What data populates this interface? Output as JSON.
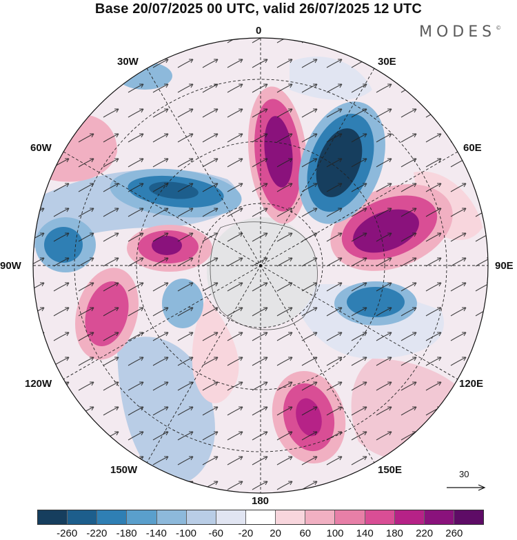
{
  "header": {
    "title": "Base 20/07/2025 00 UTC, valid 26/07/2025 12 UTC",
    "brand": "MODES",
    "brand_mark": "©"
  },
  "map": {
    "projection": "south-polar-stereographic",
    "longitude_labels": {
      "lon_0": "0",
      "lon_30e": "30E",
      "lon_60e": "60E",
      "lon_90e": "90E",
      "lon_120e": "120E",
      "lon_150e": "150E",
      "lon_180": "180",
      "lon_150w": "150W",
      "lon_120w": "120W",
      "lon_90w": "90W",
      "lon_60w": "60W",
      "lon_30w": "30W"
    },
    "vector_reference": {
      "value": "30"
    }
  },
  "colorbar": {
    "ticks": [
      "-260",
      "-220",
      "-180",
      "-140",
      "-100",
      "-60",
      "-20",
      "20",
      "60",
      "100",
      "140",
      "180",
      "220",
      "260"
    ],
    "colors": [
      "#163e5e",
      "#1d5e8c",
      "#2f7fb4",
      "#5a9fcc",
      "#8db9db",
      "#b9cde6",
      "#e1e5f2",
      "#ffffff",
      "#f8d6dd",
      "#f1b0c2",
      "#e77fa7",
      "#d94e95",
      "#b62287",
      "#8a127c",
      "#5e0c66"
    ]
  }
}
